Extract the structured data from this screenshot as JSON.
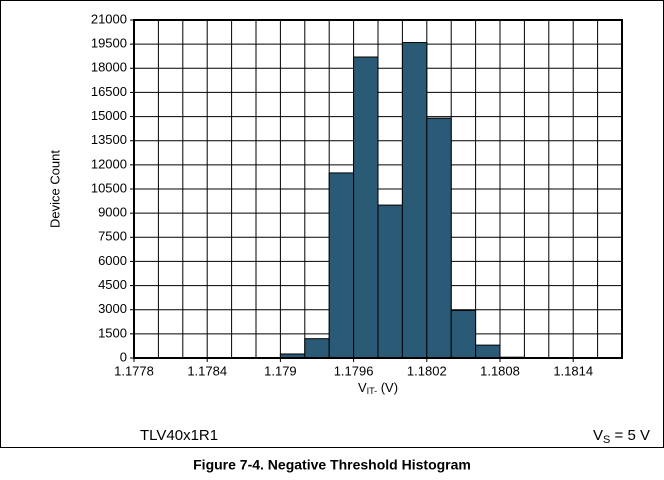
{
  "chart_data": {
    "type": "histogram",
    "title": "Figure 7-4. Negative Threshold Histogram",
    "ylabel": "Device Count",
    "xlabel": {
      "main": "V",
      "sub": "IT-",
      "rest": " (V)"
    },
    "annotation_left": "TLV40x1R1",
    "annotation_right": {
      "main": "V",
      "sub": "S",
      "rest": " = 5 V"
    },
    "bins": [
      1.1778,
      1.178,
      1.1782,
      1.1784,
      1.1786,
      1.1788,
      1.179,
      1.1792,
      1.1794,
      1.1796,
      1.1798,
      1.18,
      1.1802,
      1.1804,
      1.1806,
      1.1808,
      1.181,
      1.1812,
      1.1814,
      1.1816,
      1.1818
    ],
    "values": [
      0,
      0,
      0,
      0,
      10,
      20,
      250,
      1200,
      11500,
      18700,
      9500,
      19600,
      14900,
      2950,
      800,
      50,
      10,
      0,
      0,
      0
    ],
    "color": "#2b5a76",
    "xlim": [
      1.1778,
      1.1818
    ],
    "xticks": [
      1.1778,
      1.1784,
      1.179,
      1.1796,
      1.1802,
      1.1808,
      1.1814
    ],
    "ylim": [
      0,
      21000
    ],
    "yticks": [
      0,
      1500,
      3000,
      4500,
      6000,
      7500,
      9000,
      10500,
      12000,
      13500,
      15000,
      16500,
      18000,
      19500,
      21000
    ],
    "grid": true
  }
}
